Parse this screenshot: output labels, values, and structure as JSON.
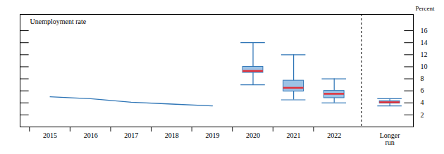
{
  "chart_data": {
    "type": "box",
    "title": "Unemployment rate",
    "y_label": "Percent",
    "categories": [
      "2015",
      "2016",
      "2017",
      "2018",
      "2019",
      "2020",
      "2021",
      "2022",
      "Longer run"
    ],
    "series": [
      {
        "type": "line",
        "color": "#2e75b6",
        "values": [
          5.0,
          4.7,
          4.1,
          3.8,
          3.5,
          null,
          null,
          null,
          null
        ]
      },
      {
        "type": "box",
        "color": "#9dc3e6",
        "range_low": [
          null,
          null,
          null,
          null,
          null,
          7.0,
          4.5,
          4.0,
          3.5
        ],
        "central_low": [
          null,
          null,
          null,
          null,
          null,
          9.0,
          5.9,
          4.8,
          3.9
        ],
        "median": [
          null,
          null,
          null,
          null,
          null,
          9.3,
          6.5,
          5.5,
          4.1
        ],
        "central_high": [
          null,
          null,
          null,
          null,
          null,
          10.0,
          7.7,
          6.0,
          4.3
        ],
        "range_high": [
          null,
          null,
          null,
          null,
          null,
          14.0,
          12.0,
          8.0,
          4.7
        ]
      }
    ],
    "ylim": [
      0,
      18.7
    ],
    "yticks": [
      2,
      4,
      6,
      8,
      10,
      12,
      14,
      16
    ],
    "grid": false
  }
}
